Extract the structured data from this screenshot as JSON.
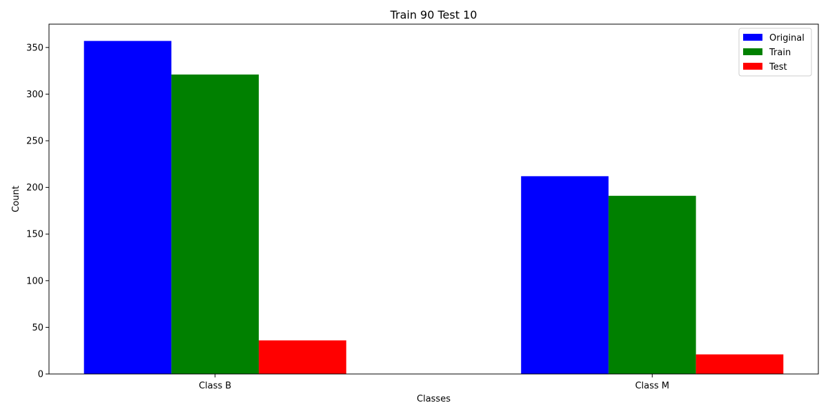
{
  "chart_data": {
    "type": "bar",
    "title": "Train 90 Test 10",
    "xlabel": "Classes",
    "ylabel": "Count",
    "categories": [
      "Class B",
      "Class M"
    ],
    "series": [
      {
        "name": "Original",
        "values": [
          357,
          212
        ],
        "color": "#0000ff"
      },
      {
        "name": "Train",
        "values": [
          321,
          191
        ],
        "color": "#008000"
      },
      {
        "name": "Test",
        "values": [
          36,
          21
        ],
        "color": "#ff0000"
      }
    ],
    "ylim": [
      0,
      375
    ],
    "yticks": [
      0,
      50,
      100,
      150,
      200,
      250,
      300,
      350
    ],
    "grid": false,
    "legend": "top-right"
  }
}
